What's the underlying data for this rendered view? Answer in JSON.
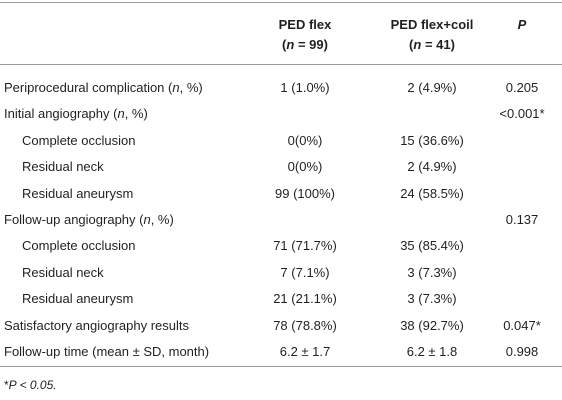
{
  "table": {
    "header": [
      [
        [
          "PED flex"
        ],
        [
          "(",
          {
            "em": "n"
          },
          " = 99)"
        ]
      ],
      [
        [
          "PED flex+coil"
        ],
        [
          "(",
          {
            "em": "n"
          },
          " = 41)"
        ]
      ],
      [
        [
          {
            "em": "P"
          }
        ]
      ]
    ],
    "rows": [
      {
        "label": [
          "Periprocedural complication (",
          {
            "em": "n"
          },
          ", %)"
        ],
        "cells": [
          "1 (1.0%)",
          "2 (4.9%)",
          "0.205"
        ]
      },
      {
        "label": [
          "Initial angiography (",
          {
            "em": "n"
          },
          ", %)"
        ],
        "cells": [
          null,
          null,
          "<0.001*"
        ]
      },
      {
        "label": [
          "Complete occlusion"
        ],
        "indent": true,
        "cells": [
          "0(0%)",
          "15 (36.6%)",
          null
        ]
      },
      {
        "label": [
          "Residual neck"
        ],
        "indent": true,
        "cells": [
          "0(0%)",
          "2 (4.9%)",
          null
        ]
      },
      {
        "label": [
          "Residual aneurysm"
        ],
        "indent": true,
        "cells": [
          "99 (100%)",
          "24 (58.5%)",
          null
        ]
      },
      {
        "label": [
          "Follow-up angiography (",
          {
            "em": "n"
          },
          ", %)"
        ],
        "cells": [
          null,
          null,
          "0.137"
        ]
      },
      {
        "label": [
          "Complete occlusion"
        ],
        "indent": true,
        "cells": [
          "71 (71.7%)",
          "35 (85.4%)",
          null
        ]
      },
      {
        "label": [
          "Residual neck"
        ],
        "indent": true,
        "cells": [
          "7 (7.1%)",
          "3 (7.3%)",
          null
        ]
      },
      {
        "label": [
          "Residual aneurysm"
        ],
        "indent": true,
        "cells": [
          "21 (21.1%)",
          "3 (7.3%)",
          null
        ]
      },
      {
        "label": [
          "Satisfactory angiography results"
        ],
        "cells": [
          "78 (78.8%)",
          "38 (92.7%)",
          "0.047*"
        ]
      },
      {
        "label": [
          "Follow-up time (mean ± SD, month)"
        ],
        "cells": [
          "6.2 ± 1.7",
          "6.2 ± 1.8",
          "0.998"
        ]
      }
    ],
    "footnote": [
      "*",
      {
        "em": "P < 0.05."
      }
    ]
  }
}
